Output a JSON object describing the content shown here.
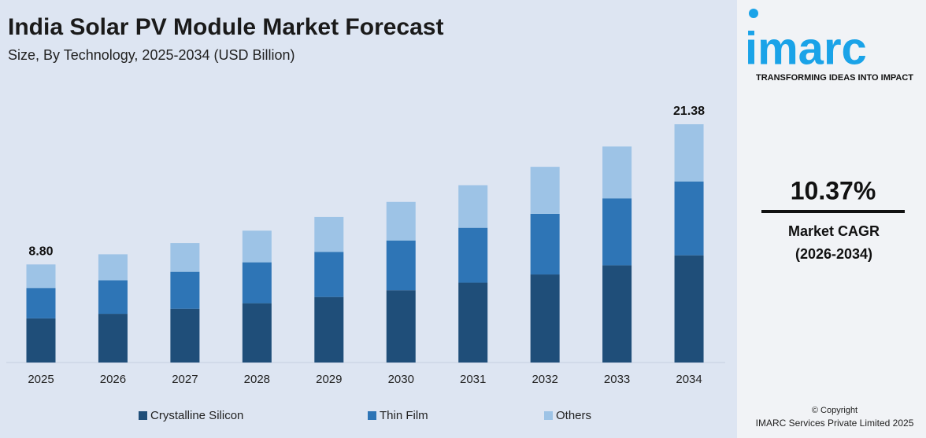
{
  "chart_data": {
    "type": "stacked_bar",
    "title": "India Solar PV Module Market Forecast",
    "subtitle": "Size, By Technology, 2025-2034 (USD Billion)",
    "categories": [
      "2025",
      "2026",
      "2027",
      "2028",
      "2029",
      "2030",
      "2031",
      "2032",
      "2033",
      "2034"
    ],
    "series": [
      {
        "name": "Crystalline Silicon",
        "color": "#1f4e79",
        "values": [
          3.96,
          4.37,
          4.82,
          5.32,
          5.88,
          6.48,
          7.16,
          7.9,
          8.72,
          9.62
        ]
      },
      {
        "name": "Thin Film",
        "color": "#2e75b6",
        "values": [
          2.73,
          3.01,
          3.32,
          3.67,
          4.05,
          4.47,
          4.93,
          5.44,
          6.01,
          6.63
        ]
      },
      {
        "name": "Others",
        "color": "#9dc3e6",
        "values": [
          2.11,
          2.33,
          2.58,
          2.84,
          3.13,
          3.46,
          3.82,
          4.22,
          4.65,
          5.13
        ]
      }
    ],
    "annotations": [
      {
        "category": "2025",
        "value": 8.8,
        "label": "8.80"
      },
      {
        "category": "2034",
        "value": 21.38,
        "label": "21.38"
      }
    ]
  },
  "sidebar": {
    "logo": "imarc",
    "tagline": "TRANSFORMING IDEAS INTO IMPACT",
    "cagr": "10.37%",
    "cagr_label": "Market CAGR",
    "cagr_period": "(2026-2034)",
    "copyright": "© Copyright",
    "company": "IMARC Services Private Limited  2025"
  }
}
